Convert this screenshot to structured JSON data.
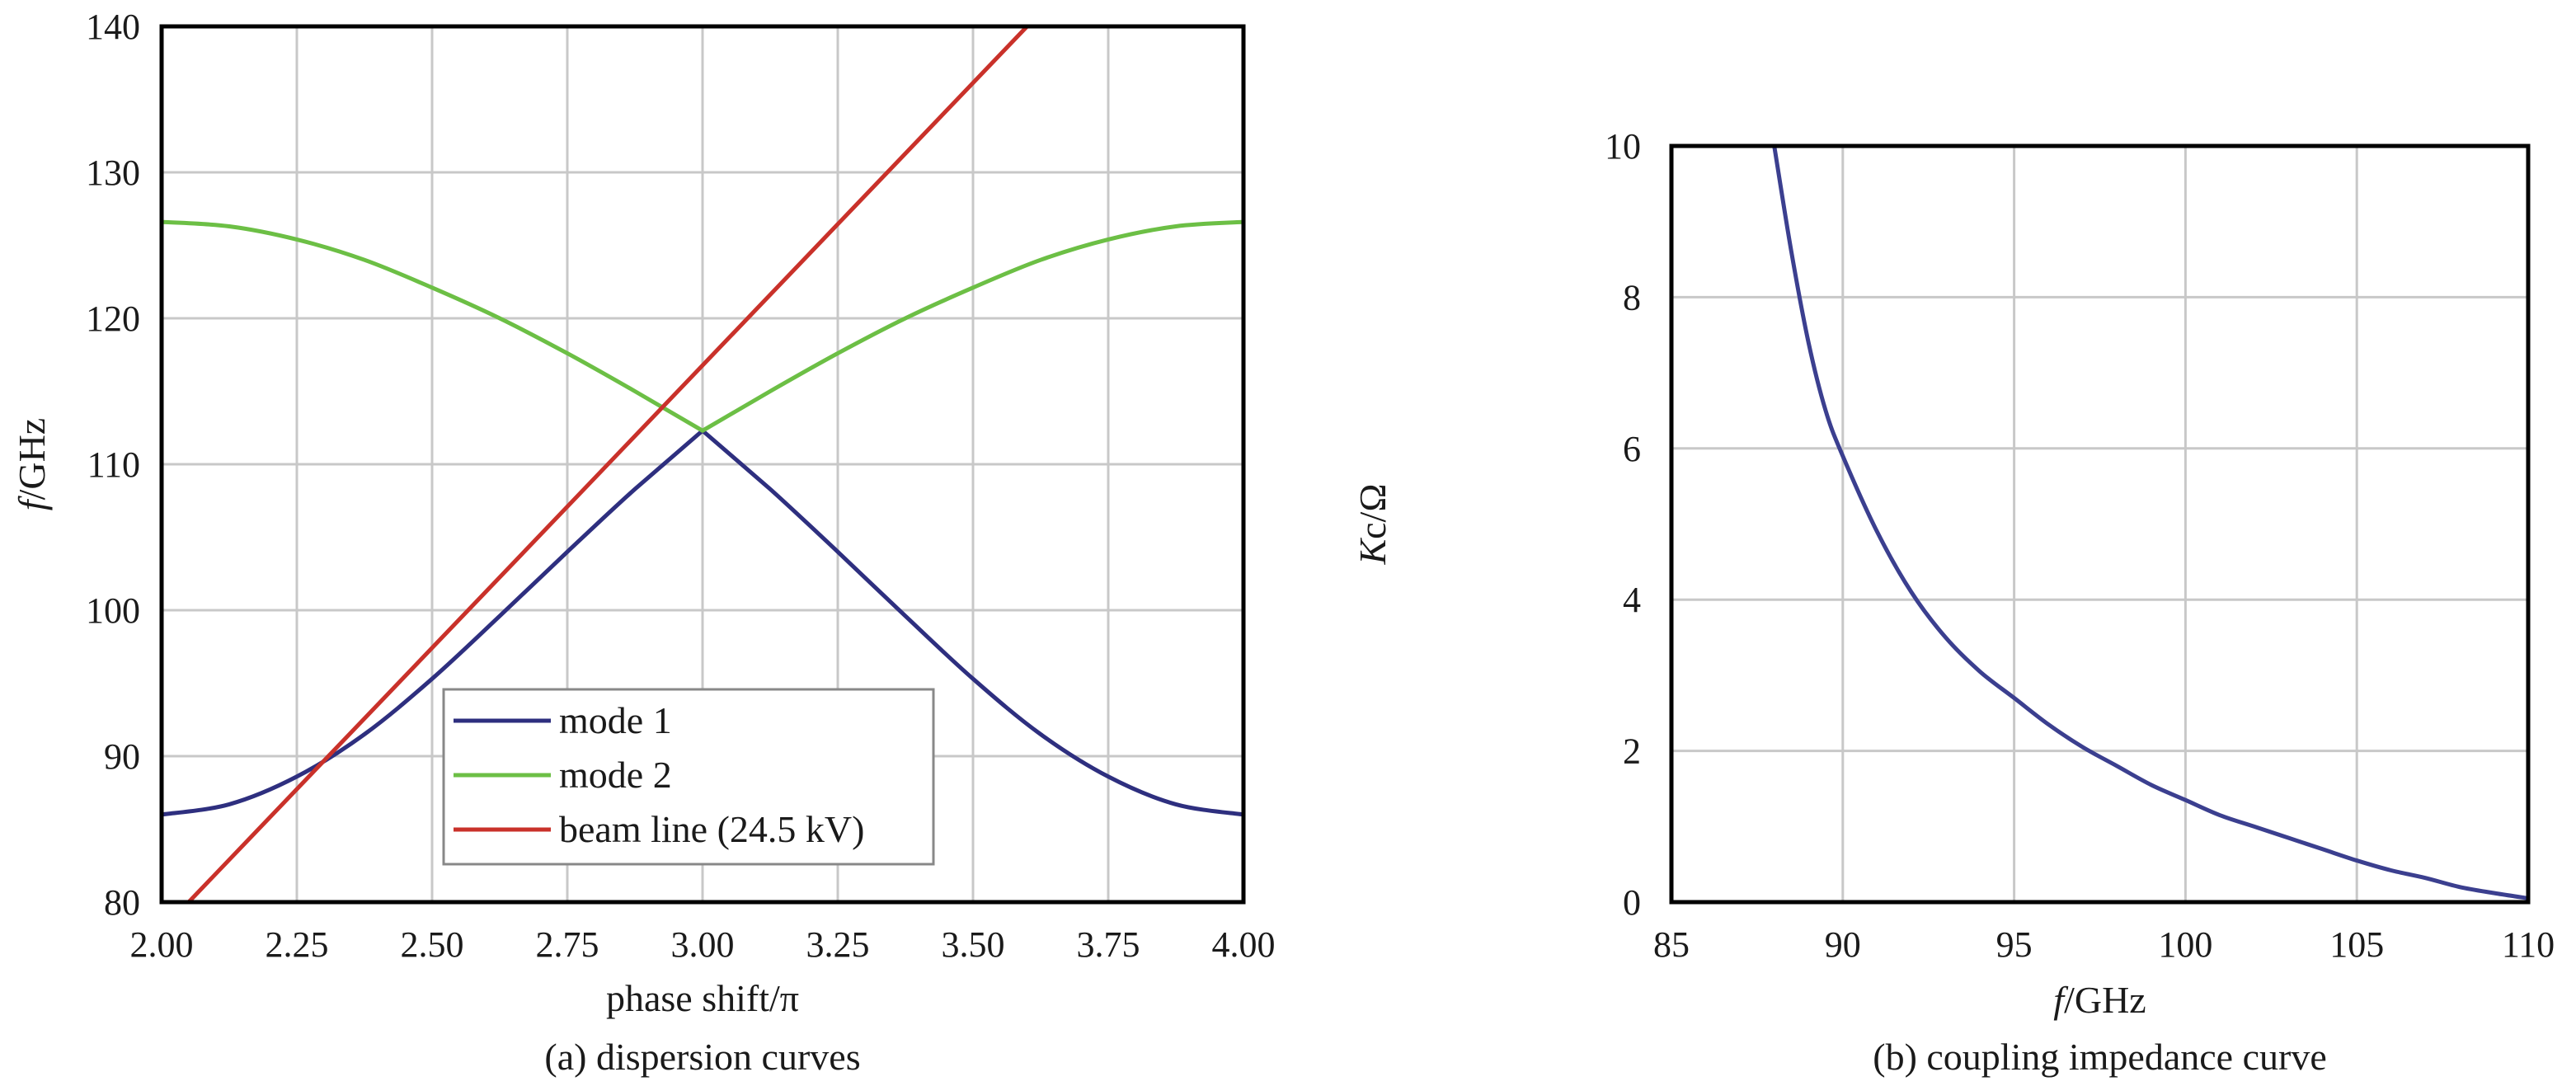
{
  "chart_data": [
    {
      "type": "line",
      "caption": "(a) dispersion curves",
      "xlabel_italic": "",
      "xlabel": "phase shift/π",
      "ylabel_italic": "f",
      "ylabel": "/GHz",
      "xlim": [
        2.0,
        4.0
      ],
      "ylim": [
        80,
        140
      ],
      "xticks": [
        "2.00",
        "2.25",
        "2.50",
        "2.75",
        "3.00",
        "3.25",
        "3.50",
        "3.75",
        "4.00"
      ],
      "yticks": [
        "80",
        "90",
        "100",
        "110",
        "120",
        "130",
        "140"
      ],
      "grid": true,
      "legend_position": "bottom-center",
      "series": [
        {
          "name": "mode 1",
          "color": "#2e2f7f",
          "x": [
            2.0,
            2.125,
            2.25,
            2.375,
            2.5,
            2.625,
            2.75,
            2.875,
            3.0,
            3.125,
            3.25,
            3.375,
            3.5,
            3.625,
            3.75,
            3.875,
            4.0
          ],
          "y": [
            86.0,
            86.7,
            88.6,
            91.5,
            95.3,
            99.6,
            104.0,
            108.3,
            112.3,
            108.3,
            104.0,
            99.6,
            95.3,
            91.5,
            88.6,
            86.7,
            86.0
          ]
        },
        {
          "name": "mode 2",
          "color": "#6cbf45",
          "x": [
            2.0,
            2.125,
            2.25,
            2.375,
            2.5,
            2.625,
            2.75,
            2.875,
            3.0,
            3.125,
            3.25,
            3.375,
            3.5,
            3.625,
            3.75,
            3.875,
            4.0
          ],
          "y": [
            126.6,
            126.3,
            125.4,
            124.0,
            122.1,
            120.0,
            117.6,
            115.0,
            112.3,
            115.0,
            117.6,
            120.0,
            122.1,
            124.0,
            125.4,
            126.3,
            126.6
          ]
        },
        {
          "name": "beam line (24.5 kV)",
          "color": "#c9312a",
          "x": [
            2.05,
            3.6
          ],
          "y": [
            80.0,
            140.0
          ]
        }
      ]
    },
    {
      "type": "line",
      "caption": "(b) coupling impedance curve",
      "xlabel_italic": "f",
      "xlabel": "/GHz",
      "ylabel_italic": "K",
      "ylabel": "c/Ω",
      "xlim": [
        85,
        110
      ],
      "ylim": [
        0,
        10
      ],
      "xticks": [
        "85",
        "90",
        "95",
        "100",
        "105",
        "110"
      ],
      "yticks": [
        "0",
        "2",
        "4",
        "6",
        "8",
        "10"
      ],
      "grid": true,
      "series": [
        {
          "name": "",
          "color": "#3b3f8f",
          "x": [
            88.0,
            88.5,
            89.0,
            89.5,
            90.0,
            91.0,
            92.0,
            93.0,
            94.0,
            95.0,
            96.0,
            97.0,
            98.0,
            99.0,
            100.0,
            101.0,
            102.0,
            103.0,
            104.0,
            105.0,
            106.0,
            107.0,
            108.0,
            109.0,
            110.0
          ],
          "y": [
            10.0,
            8.6,
            7.4,
            6.5,
            5.9,
            4.9,
            4.1,
            3.5,
            3.05,
            2.7,
            2.35,
            2.05,
            1.8,
            1.55,
            1.35,
            1.15,
            1.0,
            0.85,
            0.7,
            0.55,
            0.42,
            0.32,
            0.2,
            0.12,
            0.05
          ]
        }
      ]
    }
  ]
}
